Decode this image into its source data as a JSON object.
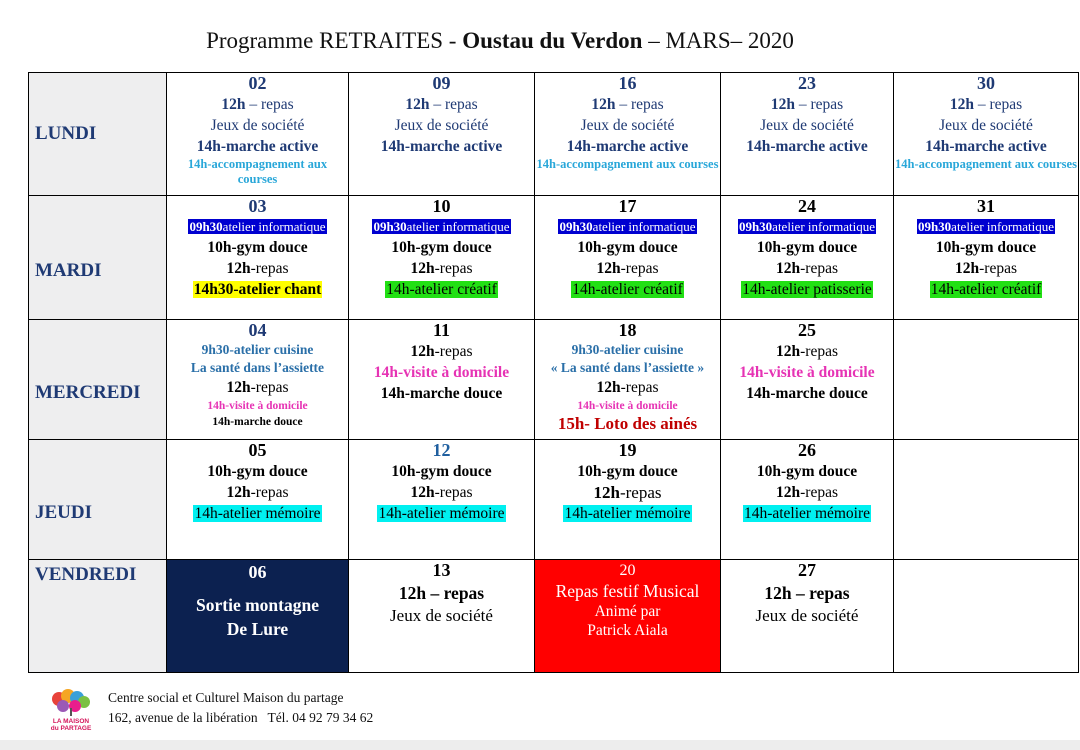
{
  "title": {
    "prefix": "Programme RETRAITES - ",
    "bold": "Oustau du Verdon",
    "suffix": " – MARS– 2020"
  },
  "days": {
    "lundi": "LUNDI",
    "mardi": "MARDI",
    "mercredi": "MERCREDI",
    "jeudi": "JEUDI",
    "vendredi": "VENDREDI"
  },
  "lundi": [
    {
      "num": "02",
      "repas_time": "12h",
      "repas_text": " – repas",
      "jeux": "Jeux de société",
      "marche": "14h-marche active",
      "accomp": "14h-accompagnement aux courses"
    },
    {
      "num": "09",
      "repas_time": "12h",
      "repas_text": " – repas",
      "jeux": "Jeux de société",
      "marche": "14h-marche active"
    },
    {
      "num": "16",
      "repas_time": "12h",
      "repas_text": " – repas",
      "jeux": "Jeux de société",
      "marche": "14h-marche active",
      "accomp": "14h-accompagnement aux courses"
    },
    {
      "num": "23",
      "repas_time": "12h",
      "repas_text": " – repas",
      "jeux": "Jeux de société",
      "marche": "14h-marche active"
    },
    {
      "num": "30",
      "repas_time": "12h",
      "repas_text": " – repas",
      "jeux": "Jeux de société",
      "marche": "14h-marche active",
      "accomp": "14h-accompagnement aux courses"
    }
  ],
  "mardi": [
    {
      "num": "03",
      "info_time": "09h30",
      "info_text": "atelier informatique",
      "gym": "10h-gym douce",
      "repas_time": "12h",
      "repas_text": "-repas",
      "atelier": "14h30-atelier chant"
    },
    {
      "num": "10",
      "info_time": "09h30",
      "info_text": "atelier informatique",
      "gym": "10h-gym douce",
      "repas_time": "12h",
      "repas_text": "-repas",
      "atelier": "14h-atelier créatif"
    },
    {
      "num": "17",
      "info_time": "09h30",
      "info_text": "atelier informatique",
      "gym": "10h-gym douce",
      "repas_time": "12h",
      "repas_text": "-repas",
      "atelier": "14h-atelier créatif"
    },
    {
      "num": "24",
      "info_time": "09h30",
      "info_text": "atelier informatique",
      "gym": "10h-gym douce",
      "repas_time": "12h",
      "repas_text": "-repas",
      "atelier": "14h-atelier patisserie"
    },
    {
      "num": "31",
      "info_time": "09h30",
      "info_text": "atelier informatique",
      "gym": "10h-gym douce",
      "repas_time": "12h",
      "repas_text": "-repas",
      "atelier": "14h-atelier créatif"
    }
  ],
  "mercredi": [
    {
      "num": "04",
      "cuisine": "9h30-atelier cuisine",
      "sante": "La santé dans l’assiette",
      "repas_time": "12h",
      "repas_text": "-repas",
      "visite": "14h-visite à domicile",
      "marche": "14h-marche douce"
    },
    {
      "num": "11",
      "repas_time": "12h",
      "repas_text": "-repas",
      "visite": "14h-visite à domicile",
      "marche": "14h-marche douce"
    },
    {
      "num": "18",
      "cuisine": "9h30-atelier cuisine",
      "sante": "« La santé dans l’assiette »",
      "repas_time": "12h",
      "repas_text": "-repas",
      "visite": "14h-visite à domicile",
      "loto": "15h- Loto des ainés"
    },
    {
      "num": "25",
      "repas_time": "12h",
      "repas_text": "-repas",
      "visite": "14h-visite à domicile",
      "marche": "14h-marche douce"
    }
  ],
  "jeudi": [
    {
      "num": "05",
      "gym": "10h-gym douce",
      "repas_time": "12h",
      "repas_text": "-repas",
      "atelier": "14h-atelier mémoire"
    },
    {
      "num": "12",
      "gym": "10h-gym douce",
      "repas_time": "12h",
      "repas_text": "-repas",
      "atelier": "14h-atelier mémoire"
    },
    {
      "num": "19",
      "gym": "10h-gym douce",
      "repas_time": "12h",
      "repas_text": "-repas",
      "atelier": "14h-atelier mémoire"
    },
    {
      "num": "26",
      "gym": "10h-gym douce",
      "repas_time": "12h",
      "repas_text": "-repas",
      "atelier": "14h-atelier mémoire"
    }
  ],
  "vendredi": [
    {
      "num": "06",
      "line1": "Sortie montagne",
      "line2": "De Lure"
    },
    {
      "num": "13",
      "repas": "12h – repas",
      "jeux": "Jeux de société"
    },
    {
      "num": "20",
      "line1": "Repas festif Musical",
      "line2": "Animé par",
      "line3": "Patrick Aiala"
    },
    {
      "num": "27",
      "repas": "12h – repas",
      "jeux": "Jeux de société"
    }
  ],
  "footer": {
    "logo_line1": "LA MAISON",
    "logo_line2": "du PARTAGE",
    "line1": "Centre social et Culturel Maison du partage",
    "line2": "162, avenue de la libération   Tél. 04 92 79 34 62"
  },
  "colors": {
    "navy_text": "#1f3a74",
    "highlight_blue": "#0000d0",
    "highlight_yellow": "#ffff00",
    "highlight_green": "#22e014",
    "highlight_cyan": "#00f0f0",
    "navy_cell": "#0c2150",
    "red_cell": "#ff0000"
  }
}
